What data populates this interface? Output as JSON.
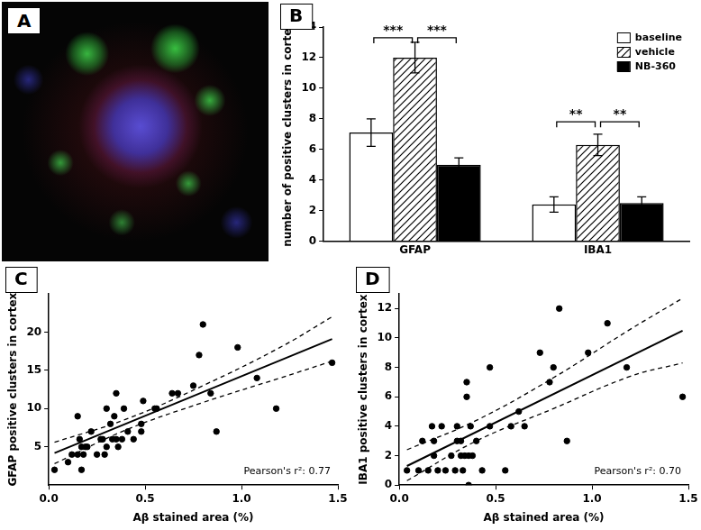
{
  "image_panel": {
    "label": "A"
  },
  "chart_data": [
    {
      "type": "bar",
      "title": "B",
      "categories": [
        "GFAP",
        "IBA1"
      ],
      "series": [
        {
          "name": "baseline",
          "color": "#ffffff",
          "values": [
            7.1,
            2.4
          ],
          "errors": [
            0.9,
            0.5
          ]
        },
        {
          "name": "vehicle",
          "color": "#ffffff",
          "line_style": "hatched",
          "values": [
            12.0,
            6.3
          ],
          "errors": [
            1.0,
            0.7
          ]
        },
        {
          "name": "NB-360",
          "color": "#000000",
          "values": [
            5.0,
            2.5
          ],
          "errors": [
            0.45,
            0.4
          ]
        }
      ],
      "ylabel": "number of positive clusters in cortex",
      "ylim": [
        0,
        14
      ],
      "yticks": [
        0,
        2,
        4,
        6,
        8,
        10,
        12,
        14
      ],
      "grid": false,
      "legend": "upper right",
      "significance": [
        {
          "category": "GFAP",
          "from": "baseline",
          "to": "vehicle",
          "label": "***",
          "y": 13.3
        },
        {
          "category": "GFAP",
          "from": "vehicle",
          "to": "NB-360",
          "label": "***",
          "y": 13.3
        },
        {
          "category": "IBA1",
          "from": "baseline",
          "to": "vehicle",
          "label": "**",
          "y": 7.8
        },
        {
          "category": "IBA1",
          "from": "vehicle",
          "to": "NB-360",
          "label": "**",
          "y": 7.8
        }
      ]
    },
    {
      "type": "scatter",
      "title": "C",
      "x": [
        0.03,
        0.1,
        0.12,
        0.15,
        0.15,
        0.16,
        0.17,
        0.17,
        0.18,
        0.19,
        0.2,
        0.22,
        0.25,
        0.27,
        0.28,
        0.29,
        0.3,
        0.3,
        0.32,
        0.33,
        0.34,
        0.35,
        0.35,
        0.36,
        0.38,
        0.39,
        0.41,
        0.44,
        0.48,
        0.48,
        0.49,
        0.55,
        0.56,
        0.64,
        0.67,
        0.75,
        0.78,
        0.8,
        0.84,
        0.87,
        0.98,
        1.08,
        1.18,
        1.47
      ],
      "values": [
        2,
        3,
        4,
        4,
        9,
        6,
        2,
        5,
        4,
        5,
        5,
        7,
        4,
        6,
        6,
        4,
        10,
        5,
        8,
        6,
        9,
        12,
        6,
        5,
        6,
        10,
        7,
        6,
        8,
        7,
        11,
        10,
        10,
        12,
        12,
        13,
        17,
        21,
        12,
        7,
        18,
        14,
        10,
        16
      ],
      "color": "#000000",
      "marker": "circle",
      "xlabel": "Aβ stained area (%)",
      "ylabel": "GFAP positive clusters in cortex",
      "xlim": [
        0,
        1.5
      ],
      "xticks": [
        {
          "value": 0,
          "label": "0.0"
        },
        0.5,
        {
          "value": 1,
          "label": "1.0"
        },
        1.5
      ],
      "ylim": [
        0,
        25
      ],
      "yticks": [
        5,
        10,
        15,
        20
      ],
      "grid": false,
      "regression": {
        "x": [
          0.03,
          1.47
        ],
        "y": [
          4.2,
          19.1
        ]
      },
      "confidence_band": {
        "x": [
          0.03,
          0.4,
          0.8,
          1.2,
          1.47
        ],
        "upper": [
          5.6,
          8.6,
          13.0,
          18.0,
          22.0
        ],
        "lower": [
          2.8,
          7.2,
          10.8,
          14.0,
          16.2
        ]
      },
      "annotations": [
        "Pearson's r²: 0.77"
      ]
    },
    {
      "type": "scatter",
      "title": "D",
      "x": [
        0.04,
        0.1,
        0.12,
        0.15,
        0.17,
        0.18,
        0.18,
        0.2,
        0.22,
        0.24,
        0.27,
        0.29,
        0.3,
        0.3,
        0.32,
        0.32,
        0.33,
        0.34,
        0.35,
        0.35,
        0.36,
        0.36,
        0.37,
        0.38,
        0.4,
        0.43,
        0.47,
        0.47,
        0.55,
        0.58,
        0.62,
        0.65,
        0.73,
        0.78,
        0.8,
        0.83,
        0.87,
        0.98,
        1.08,
        1.18,
        1.47
      ],
      "values": [
        1,
        1,
        3,
        1,
        4,
        3,
        2,
        1,
        4,
        1,
        2,
        1,
        3,
        4,
        2,
        3,
        1,
        2,
        7,
        6,
        2,
        0,
        4,
        2,
        3,
        1,
        8,
        4,
        1,
        4,
        5,
        4,
        9,
        7,
        8,
        12,
        3,
        9,
        11,
        8,
        6
      ],
      "color": "#000000",
      "marker": "circle",
      "xlabel": "Aβ stained area (%)",
      "ylabel": "IBA1 positive clusters in cortex",
      "xlim": [
        0,
        1.5
      ],
      "xticks": [
        {
          "value": 0,
          "label": "0.0"
        },
        0.5,
        {
          "value": 1,
          "label": "1.0"
        },
        1.5
      ],
      "ylim": [
        0,
        13
      ],
      "yticks": [
        0,
        2,
        4,
        6,
        8,
        10,
        12
      ],
      "grid": false,
      "regression": {
        "x": [
          0.04,
          1.47
        ],
        "y": [
          1.3,
          10.5
        ]
      },
      "confidence_band": {
        "x": [
          0.04,
          0.4,
          0.8,
          1.2,
          1.47
        ],
        "upper": [
          2.4,
          4.4,
          7.3,
          10.6,
          12.7
        ],
        "lower": [
          0.3,
          3.0,
          5.2,
          7.4,
          8.3
        ]
      },
      "annotations": [
        "Pearson's r²: 0.70"
      ]
    }
  ]
}
